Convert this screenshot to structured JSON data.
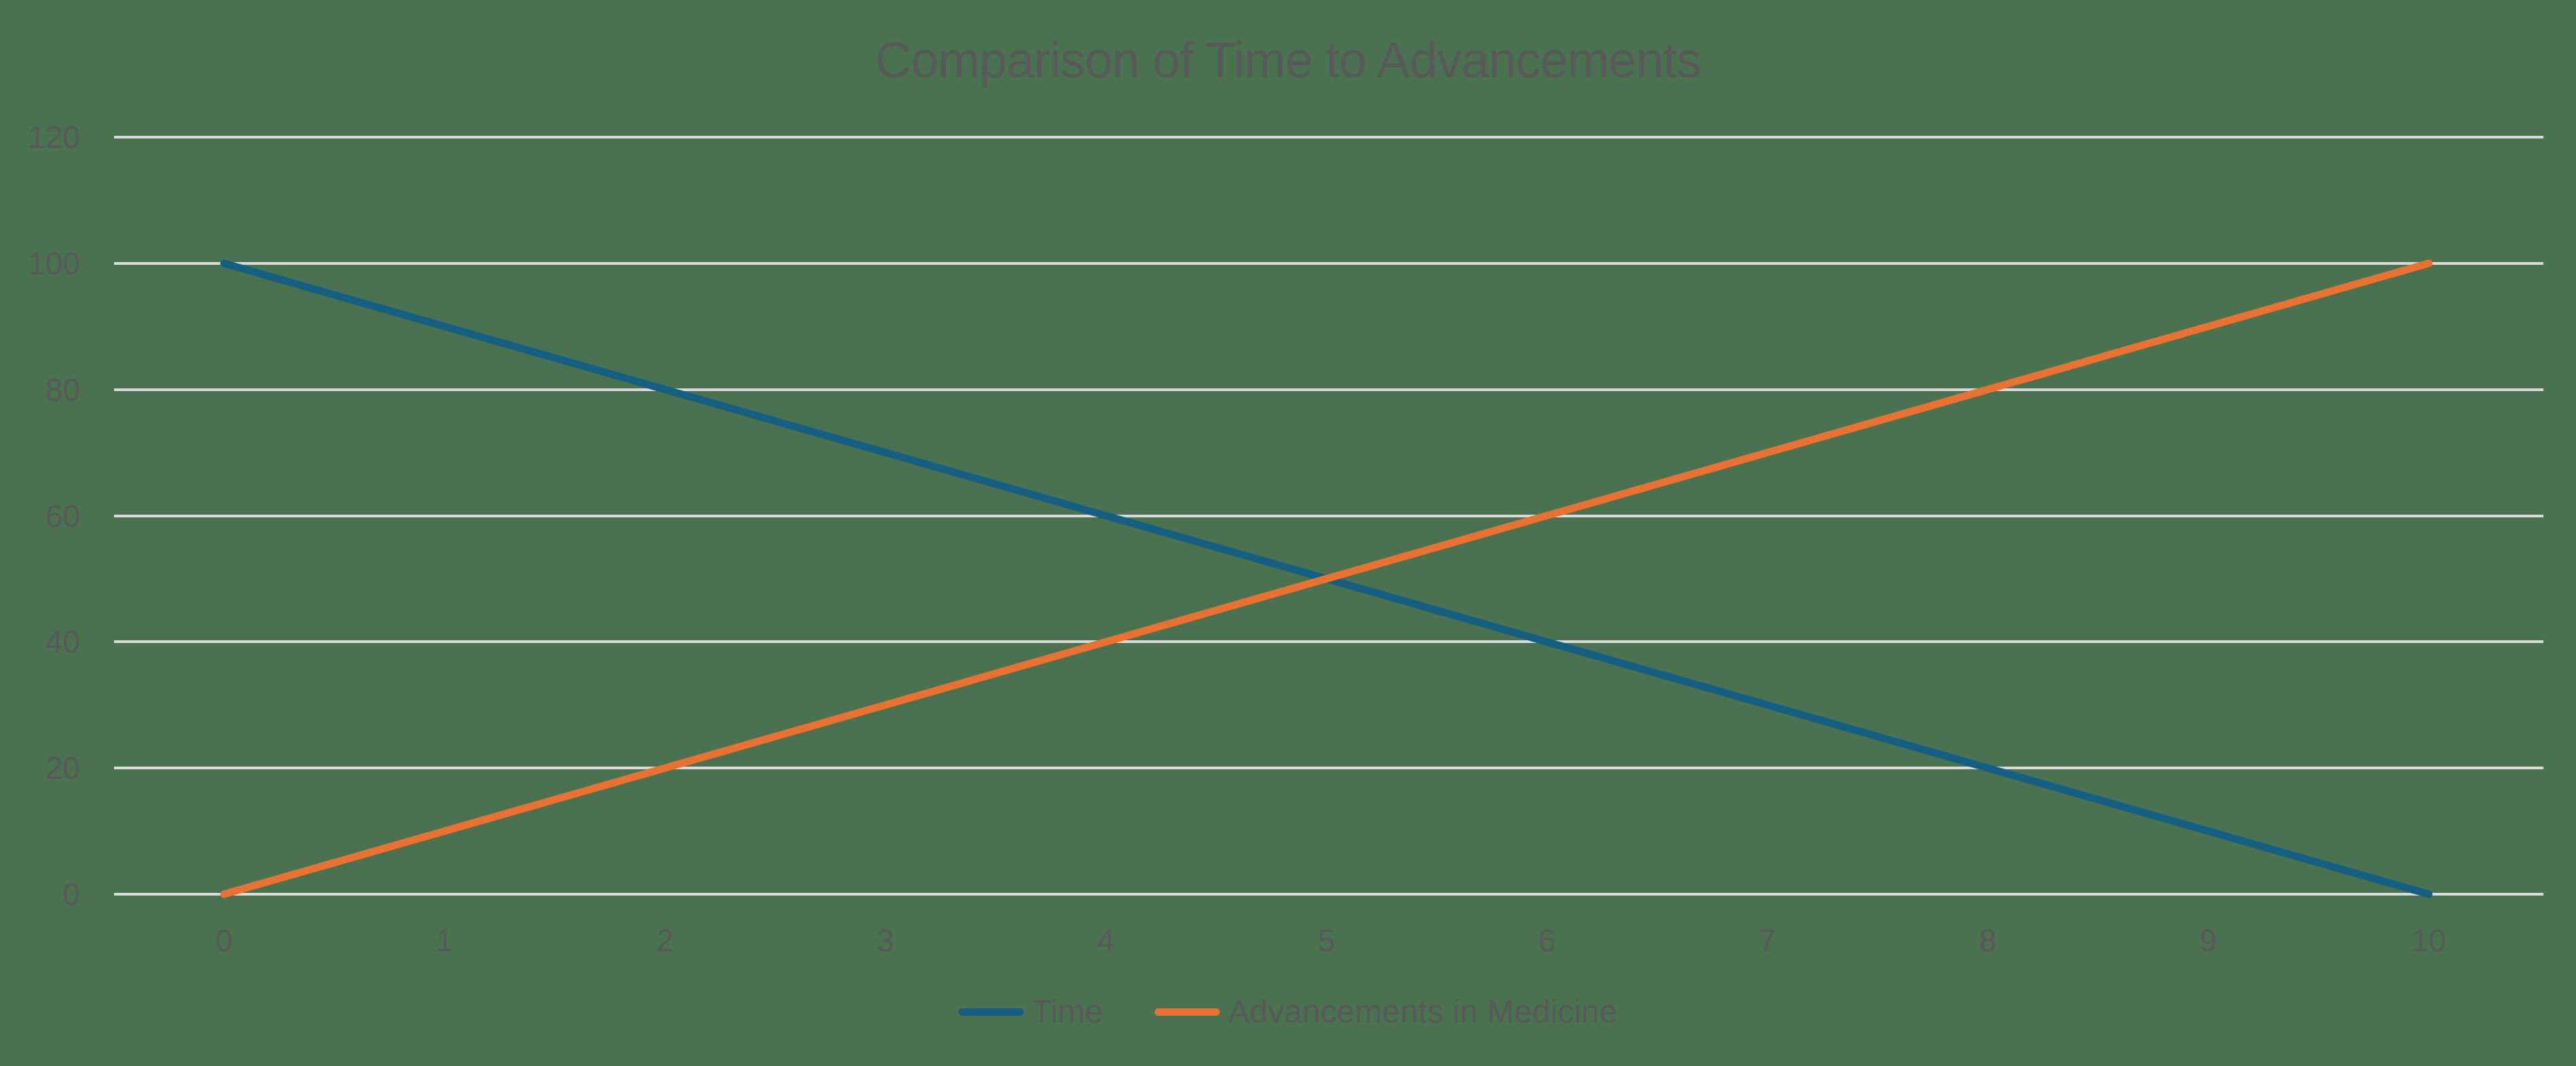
{
  "colors": {
    "background": "#4a7150",
    "text": "#595959",
    "gridline": "#d9d9d9"
  },
  "chart_data": {
    "type": "line",
    "title": "Comparison of Time to Advancements",
    "xlabel": "",
    "ylabel": "",
    "x": [
      0,
      1,
      2,
      3,
      4,
      5,
      6,
      7,
      8,
      9,
      10
    ],
    "series": [
      {
        "name": "Time",
        "color": "#156082",
        "values": [
          100,
          90,
          80,
          70,
          60,
          50,
          40,
          30,
          20,
          10,
          0
        ]
      },
      {
        "name": "Advancements in Medicine",
        "color": "#e97132",
        "values": [
          0,
          10,
          20,
          30,
          40,
          50,
          60,
          70,
          80,
          90,
          100
        ]
      }
    ],
    "xlim": [
      0,
      10
    ],
    "ylim": [
      0,
      120
    ],
    "xticks": [
      0,
      1,
      2,
      3,
      4,
      5,
      6,
      7,
      8,
      9,
      10
    ],
    "yticks": [
      0,
      20,
      40,
      60,
      80,
      100,
      120
    ],
    "grid": true,
    "legend_position": "bottom"
  }
}
